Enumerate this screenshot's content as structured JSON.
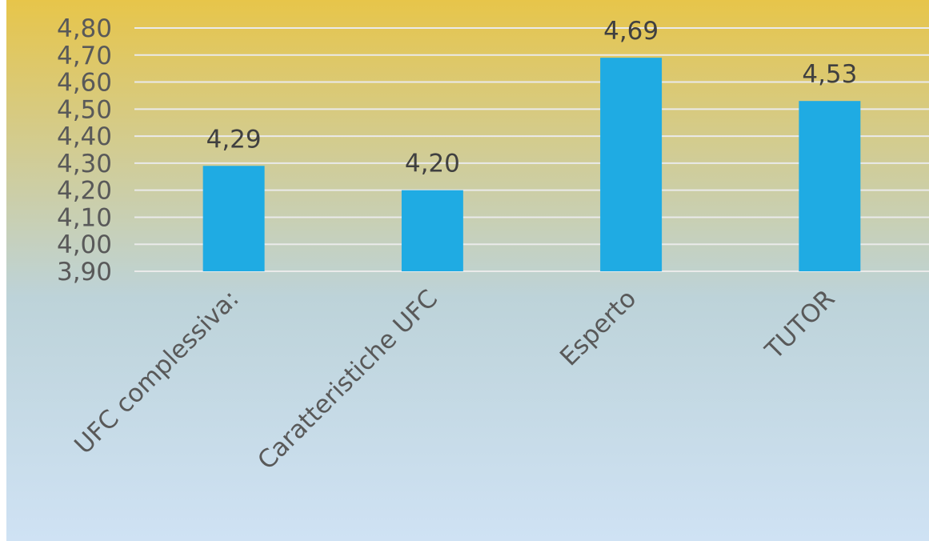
{
  "chart_data": {
    "type": "bar",
    "categories": [
      "UFC complessiva:",
      "Caratteristiche UFC",
      "Esperto",
      "TUTOR"
    ],
    "values": [
      4.29,
      4.2,
      4.69,
      4.53
    ],
    "data_labels": [
      "4,29",
      "4,20",
      "4,69",
      "4,53"
    ],
    "ylim": [
      3.9,
      4.8
    ],
    "yticks": [
      "3,90",
      "4,00",
      "4,10",
      "4,20",
      "4,30",
      "4,40",
      "4,50",
      "4,60",
      "4,70",
      "4,80"
    ],
    "grid": true,
    "legend": "none",
    "colors": {
      "bar": "#1fabe3",
      "grid": "#eaeaea",
      "background_top": "#e7c54a",
      "background_mid": "#bdd3d9",
      "background_bottom": "#cfe2f4"
    }
  }
}
